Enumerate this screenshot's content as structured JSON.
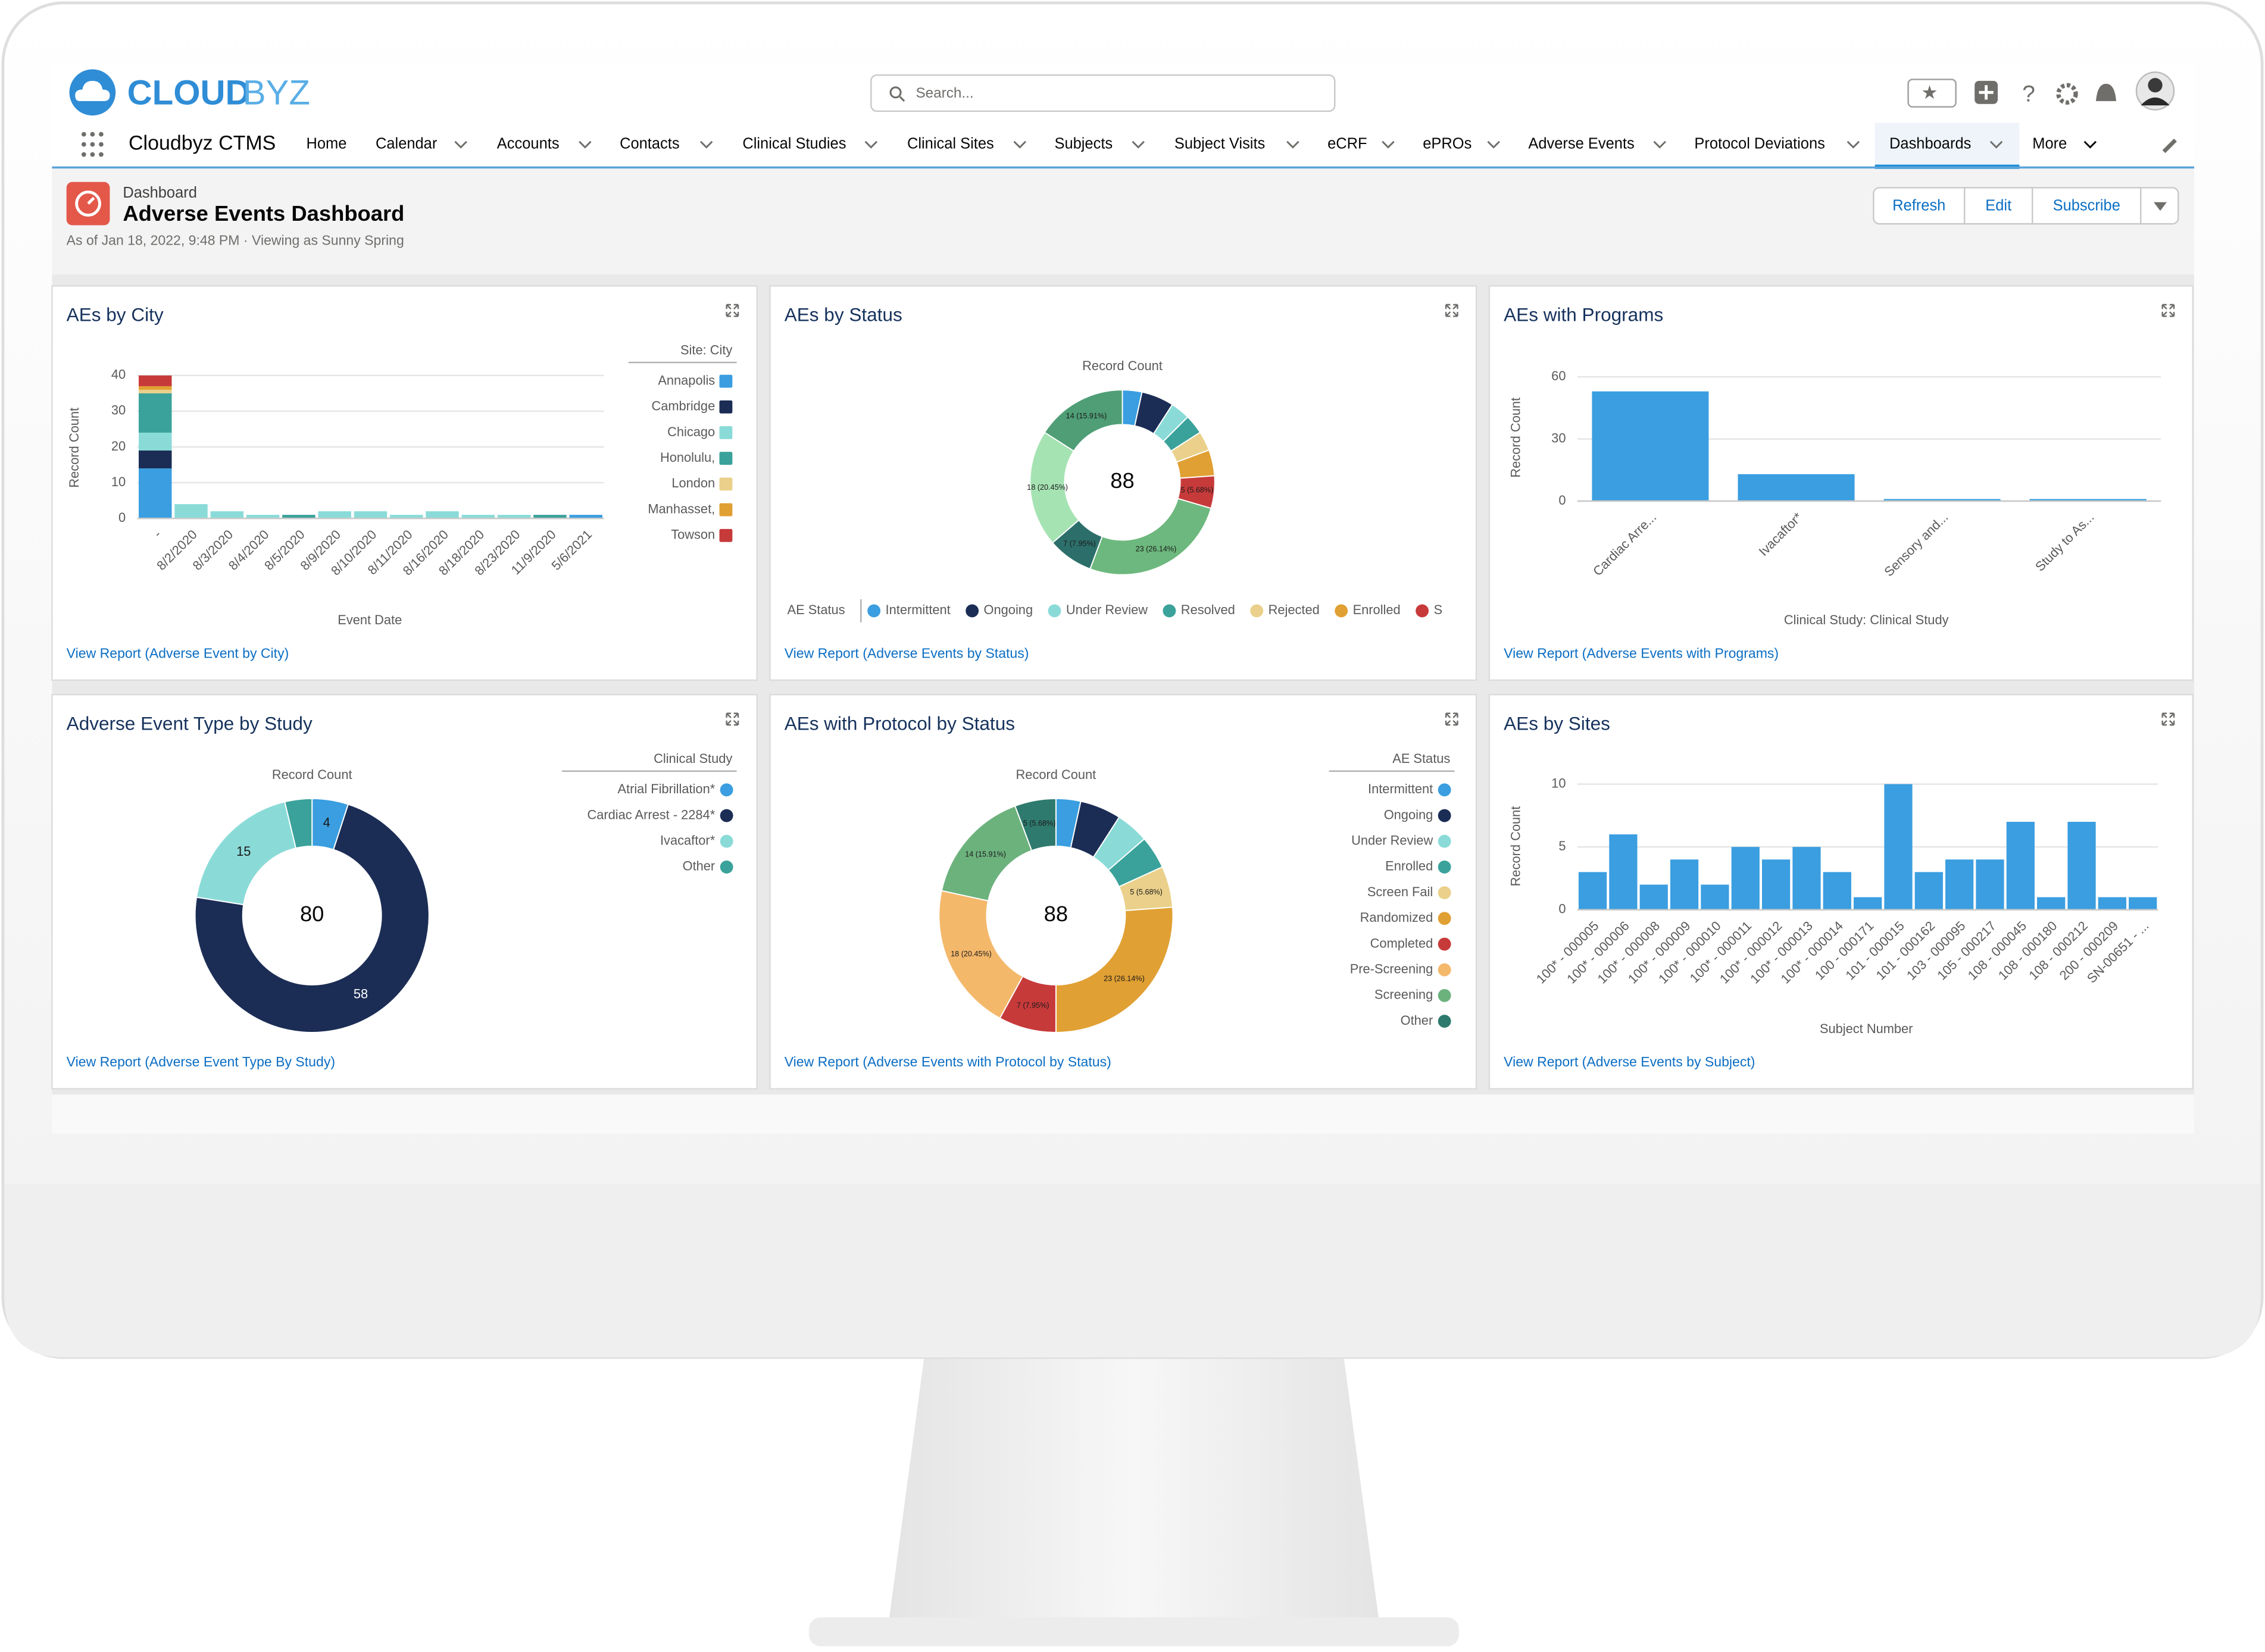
{
  "app": {
    "logo_primary": "CLOUD",
    "logo_secondary": "BYZ",
    "search": "Search...",
    "name": "Cloudbyz CTMS",
    "nav": [
      "Home",
      "Calendar",
      "Accounts",
      "Contacts",
      "Clinical Studies",
      "Clinical Sites",
      "Subjects",
      "Subject Visits",
      "eCRF",
      "ePROs",
      "Adverse Events",
      "Protocol Deviations",
      "Dashboards",
      "More"
    ],
    "active": "Dashboards"
  },
  "header": {
    "kind": "Dashboard",
    "title": "Adverse Events Dashboard",
    "subtitle": "As of Jan 18, 2022, 9:48 PM · Viewing as Sunny Spring",
    "buttons": [
      "Refresh",
      "Edit",
      "Subscribe"
    ]
  },
  "widgets": [
    {
      "title": "AEs by City",
      "link": "View Report (Adverse Event by City)",
      "chart": {
        "type": "bar",
        "stacked": true,
        "grid": true,
        "categories": [
          "-",
          "8/2/2020",
          "8/3/2020",
          "8/4/2020",
          "8/5/2020",
          "8/9/2020",
          "8/10/2020",
          "8/11/2020",
          "8/16/2020",
          "8/18/2020",
          "8/23/2020",
          "11/9/2020",
          "5/6/2021"
        ],
        "series": [
          {
            "name": "Annapolis",
            "color": "#3a9ee0",
            "values": [
              14,
              0,
              0,
              0,
              0,
              0,
              0,
              0,
              0,
              0,
              0,
              0,
              1
            ]
          },
          {
            "name": "Cambridge",
            "color": "#1b2d55",
            "values": [
              5,
              0,
              0,
              0,
              0,
              0,
              0,
              0,
              0,
              0,
              0,
              0,
              0
            ]
          },
          {
            "name": "Chicago",
            "color": "#8adbd8",
            "values": [
              5,
              4,
              2,
              1,
              0,
              2,
              2,
              1,
              2,
              1,
              1,
              0,
              0
            ]
          },
          {
            "name": "Honolulu,",
            "color": "#3aa29a",
            "values": [
              11,
              0,
              0,
              0,
              1,
              0,
              0,
              0,
              0,
              0,
              0,
              1,
              0
            ]
          },
          {
            "name": "London",
            "color": "#ead08a",
            "values": [
              1,
              0,
              0,
              0,
              0,
              0,
              0,
              0,
              0,
              0,
              0,
              0,
              0
            ]
          },
          {
            "name": "Manhasset,",
            "color": "#e1a033",
            "values": [
              1,
              0,
              0,
              0,
              0,
              0,
              0,
              0,
              0,
              0,
              0,
              0,
              0
            ]
          },
          {
            "name": "Towson",
            "color": "#c73a3a",
            "values": [
              3,
              0,
              0,
              0,
              0,
              0,
              0,
              0,
              0,
              0,
              0,
              0,
              0
            ]
          }
        ],
        "ylim": [
          0,
          40
        ],
        "yticks": [
          0,
          10,
          20,
          30,
          40
        ],
        "ylabel": "Record Count",
        "xlabel": "Event Date",
        "legend_title": "Site: City",
        "legend": "right"
      }
    },
    {
      "title": "AEs by Status",
      "link": "View Report (Adverse Events by Status)",
      "chart": {
        "type": "donut",
        "label": "Record Count",
        "total": 88,
        "categories": [
          "Intermittent",
          "Ongoing",
          "Under Review",
          "Resolved",
          "Rejected",
          "Enrolled",
          "S",
          null,
          null,
          null,
          null
        ],
        "colors": [
          "#3a9ee0",
          "#1b2d55",
          "#8adbd8",
          "#3aa29a",
          "#ead08a",
          "#e1a033",
          "#c73a3a",
          "#6db87e",
          "#2c6f6a",
          "#a6e3b3",
          "#4f9e76"
        ],
        "values": [
          3,
          5,
          3,
          3,
          3,
          4,
          5,
          23,
          7,
          18,
          14
        ],
        "value_labels": [
          null,
          null,
          null,
          null,
          null,
          null,
          "5 (5.68%)",
          "23 (26.14%)",
          "7 (7.95%)",
          "18 (20.45%)",
          "14 (15.91%)"
        ],
        "legend_title": "AE Status",
        "legend": "bottom"
      }
    },
    {
      "title": "AEs with Programs",
      "link": "View Report (Adverse Events with Programs)",
      "chart": {
        "type": "bar",
        "grid": true,
        "color": "#3a9ee0",
        "categories": [
          "Cardiac Arre...",
          "Ivacaftor*",
          "Sensory and...",
          "Study to As..."
        ],
        "values": [
          53,
          13,
          1,
          1
        ],
        "ylim": [
          0,
          60
        ],
        "yticks": [
          0,
          30,
          60
        ],
        "ylabel": "Record Count",
        "xlabel": "Clinical Study: Clinical Study"
      }
    },
    {
      "title": "Adverse Event Type by Study",
      "link": "View Report (Adverse Event Type By Study)",
      "chart": {
        "type": "donut",
        "label": "Record Count",
        "total": 80,
        "categories": [
          "Atrial Fibrillation*",
          "Cardiac Arrest - 2284*",
          "Ivacaftor*",
          "Other"
        ],
        "colors": [
          "#3a9ee0",
          "#1b2d55",
          "#8adbd8",
          "#3aa29a"
        ],
        "values": [
          4,
          58,
          15,
          3
        ],
        "value_labels": [
          "4",
          "58",
          "15",
          null
        ],
        "legend_title": "Clinical Study",
        "legend": "right"
      }
    },
    {
      "title": "AEs with Protocol by Status",
      "link": "View Report (Adverse Events with Protocol by Status)",
      "chart": {
        "type": "donut",
        "label": "Record Count",
        "total": 88,
        "categories": [
          "Intermittent",
          "Ongoing",
          "Under Review",
          "Enrolled",
          "Screen Fail",
          "Randomized",
          "Completed",
          "Pre-Screening",
          "Screening",
          "Other"
        ],
        "colors": [
          "#3a9ee0",
          "#1b2d55",
          "#8adbd8",
          "#3aa29a",
          "#ead08a",
          "#e1a033",
          "#c73a3a",
          "#f4b86b",
          "#6cb27d",
          "#2f7a6e"
        ],
        "values": [
          3,
          5,
          4,
          4,
          5,
          23,
          7,
          18,
          14,
          5
        ],
        "value_labels": [
          null,
          null,
          null,
          null,
          "5 (5.68%)",
          "23 (26.14%)",
          "7 (7.95%)",
          "18 (20.45%)",
          "14 (15.91%)",
          "5 (5.68%)"
        ],
        "legend_title": "AE Status",
        "legend": "right"
      }
    },
    {
      "title": "AEs by Sites",
      "link": "View Report (Adverse Events by Subject)",
      "chart": {
        "type": "bar",
        "grid": true,
        "color": "#3a9ee0",
        "categories": [
          "100* - 000005",
          "100* - 000006",
          "100* - 000008",
          "100* - 000009",
          "100* - 000010",
          "100* - 000011",
          "100* - 000012",
          "100* - 000013",
          "100* - 000014",
          "100 - 000171",
          "101 - 000015",
          "101 - 000162",
          "103 - 000095",
          "105 - 000217",
          "108 - 000045",
          "108 - 000180",
          "108 - 000212",
          "200 - 000209",
          "SN-00651 - ..."
        ],
        "values": [
          3,
          6,
          2,
          4,
          2,
          5,
          4,
          5,
          3,
          1,
          10,
          3,
          4,
          4,
          7,
          1,
          7,
          1,
          1
        ],
        "ylim": [
          0,
          10
        ],
        "yticks": [
          0,
          5,
          10
        ],
        "ylabel": "Record Count",
        "xlabel": "Subject Number"
      }
    }
  ]
}
